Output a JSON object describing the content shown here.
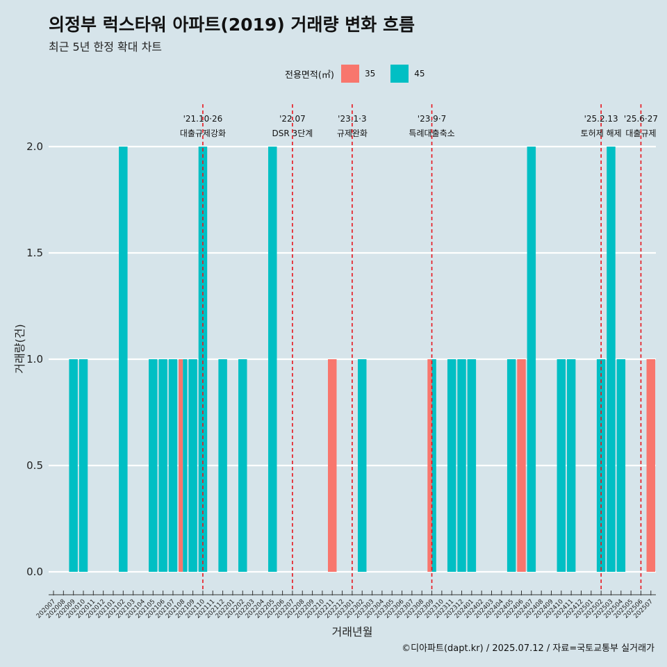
{
  "title": "의정부 럭스타워 아파트(2019) 거래량 변화 흐름",
  "subtitle": "최근 5년 한정 확대 차트",
  "legend": {
    "title": "전용면적(㎡)",
    "items": [
      {
        "label": "35",
        "color": "#f8766d"
      },
      {
        "label": "45",
        "color": "#00bfc4"
      }
    ]
  },
  "caption": "©디아파트(dapt.kr) / 2025.07.12 / 자료=국토교통부 실거래가",
  "chart_data": {
    "type": "bar",
    "xlabel": "거래년월",
    "ylabel": "거래량(건)",
    "ylim": [
      0,
      2
    ],
    "yticks": [
      "0.0",
      "0.5",
      "1.0",
      "1.5",
      "2.0"
    ],
    "categories": [
      "202007",
      "202008",
      "202009",
      "202010",
      "202011",
      "202012",
      "202101",
      "202102",
      "202103",
      "202104",
      "202105",
      "202106",
      "202107",
      "202108",
      "202109",
      "202110",
      "202111",
      "202112",
      "202201",
      "202202",
      "202203",
      "202204",
      "202205",
      "202206",
      "202207",
      "202208",
      "202209",
      "202210",
      "202211",
      "202212",
      "202301",
      "202302",
      "202303",
      "202304",
      "202305",
      "202306",
      "202307",
      "202308",
      "202309",
      "202310",
      "202311",
      "202312",
      "202401",
      "202402",
      "202403",
      "202404",
      "202405",
      "202406",
      "202407",
      "202408",
      "202409",
      "202410",
      "202411",
      "202412",
      "202501",
      "202502",
      "202503",
      "202504",
      "202505",
      "202506",
      "202507"
    ],
    "bars": [
      {
        "month": "202009",
        "area": "45",
        "value": 1
      },
      {
        "month": "202010",
        "area": "45",
        "value": 1
      },
      {
        "month": "202102",
        "area": "45",
        "value": 2
      },
      {
        "month": "202105",
        "area": "45",
        "value": 1
      },
      {
        "month": "202106",
        "area": "45",
        "value": 1
      },
      {
        "month": "202107",
        "area": "45",
        "value": 1
      },
      {
        "month": "202108",
        "area": "35",
        "value": 1
      },
      {
        "month": "202108",
        "area": "45",
        "value": 1
      },
      {
        "month": "202109",
        "area": "45",
        "value": 1
      },
      {
        "month": "202110",
        "area": "45",
        "value": 2
      },
      {
        "month": "202112",
        "area": "45",
        "value": 1
      },
      {
        "month": "202202",
        "area": "45",
        "value": 1
      },
      {
        "month": "202205",
        "area": "45",
        "value": 2
      },
      {
        "month": "202211",
        "area": "35",
        "value": 1
      },
      {
        "month": "202302",
        "area": "45",
        "value": 1
      },
      {
        "month": "202309",
        "area": "35",
        "value": 1
      },
      {
        "month": "202309",
        "area": "45",
        "value": 1
      },
      {
        "month": "202311",
        "area": "45",
        "value": 1
      },
      {
        "month": "202312",
        "area": "45",
        "value": 1
      },
      {
        "month": "202401",
        "area": "45",
        "value": 1
      },
      {
        "month": "202405",
        "area": "45",
        "value": 1
      },
      {
        "month": "202406",
        "area": "35",
        "value": 1
      },
      {
        "month": "202407",
        "area": "45",
        "value": 2
      },
      {
        "month": "202410",
        "area": "45",
        "value": 1
      },
      {
        "month": "202411",
        "area": "45",
        "value": 1
      },
      {
        "month": "202502",
        "area": "45",
        "value": 1
      },
      {
        "month": "202503",
        "area": "45",
        "value": 2
      },
      {
        "month": "202504",
        "area": "45",
        "value": 1
      },
      {
        "month": "202507",
        "area": "35",
        "value": 1
      }
    ],
    "events": [
      {
        "month": "202110",
        "offset": 0.0,
        "line1": "'21.10·26",
        "line2": "대출규제강화"
      },
      {
        "month": "202207",
        "offset": 0.0,
        "line1": "'22.07",
        "line2": "DSR 3단계"
      },
      {
        "month": "202301",
        "offset": 0.0,
        "line1": "'23.1·3",
        "line2": "규제완화"
      },
      {
        "month": "202309",
        "offset": 0.0,
        "line1": "'23.9·7",
        "line2": "특례대출축소"
      },
      {
        "month": "202502",
        "offset": 0.0,
        "line1": "'25.2.13",
        "line2": "토허제 해제"
      },
      {
        "month": "202506",
        "offset": 0.0,
        "line1": "'25.6·27",
        "line2": "대출규제"
      }
    ]
  }
}
